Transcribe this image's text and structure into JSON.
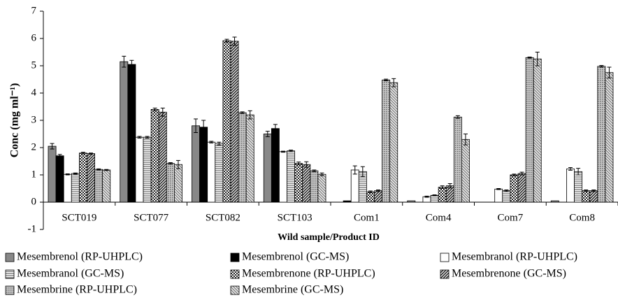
{
  "chart_data": {
    "type": "bar",
    "y_label": "Conc (mg ml⁻¹)",
    "x_label": "Wild sample/Product ID",
    "categories": [
      "SCT019",
      "SCT077",
      "SCT082",
      "SCT103",
      "Com1",
      "Com4",
      "Com7",
      "Com8"
    ],
    "ylim": [
      -1,
      7
    ],
    "yticks": [
      -1,
      0,
      1,
      2,
      3,
      4,
      5,
      6,
      7
    ],
    "grid": false,
    "series": [
      {
        "name": "Mesembrenol (RP-UHPLC)",
        "color": "#888888",
        "pattern": "solid",
        "values": [
          2.05,
          5.15,
          2.8,
          2.5,
          0,
          0.05,
          0,
          0.05
        ],
        "errors": [
          0.1,
          0.2,
          0.25,
          0.1,
          0,
          0,
          0,
          0
        ]
      },
      {
        "name": "Mesembrenol (GC-MS)",
        "color": "#000000",
        "pattern": "solid",
        "values": [
          1.7,
          5.05,
          2.75,
          2.7,
          0.05,
          0,
          0,
          0
        ],
        "errors": [
          0.05,
          0.15,
          0.25,
          0.15,
          0,
          0,
          0,
          0
        ]
      },
      {
        "name": "Mesembranol (RP-UHPLC)",
        "color": "#ffffff",
        "pattern": "solid",
        "values": [
          1.02,
          2.38,
          2.2,
          1.85,
          1.18,
          0.2,
          0.48,
          1.22
        ],
        "errors": [
          0.02,
          0.03,
          0.03,
          0.02,
          0.15,
          0.02,
          0.02,
          0.05
        ]
      },
      {
        "name": "Mesembranol (GC-MS)",
        "color": "#555555",
        "pattern": "hlines",
        "values": [
          1.05,
          2.38,
          2.15,
          1.88,
          1.12,
          0.25,
          0.42,
          1.12
        ],
        "errors": [
          0.02,
          0.03,
          0.05,
          0.03,
          0.18,
          0.02,
          0.03,
          0.12
        ]
      },
      {
        "name": "Mesembrenone (RP-UHPLC)",
        "color": "#333333",
        "pattern": "checker",
        "values": [
          1.8,
          3.4,
          5.92,
          1.42,
          0.38,
          0.55,
          1.0,
          0.42
        ],
        "errors": [
          0.03,
          0.05,
          0.05,
          0.05,
          0.03,
          0.05,
          0.03,
          0.03
        ]
      },
      {
        "name": "Mesembrenone (GC-MS)",
        "color": "#444444",
        "pattern": "diag",
        "values": [
          1.78,
          3.3,
          5.9,
          1.38,
          0.42,
          0.6,
          1.05,
          0.42
        ],
        "errors": [
          0.02,
          0.15,
          0.15,
          0.1,
          0.03,
          0.08,
          0.05,
          0.03
        ]
      },
      {
        "name": "Mesembrine (RP-UHPLC)",
        "color": "#9a9a9a",
        "pattern": "dots",
        "values": [
          1.2,
          1.42,
          3.28,
          1.15,
          4.48,
          3.12,
          5.3,
          4.98
        ],
        "errors": [
          0.02,
          0.03,
          0.03,
          0.03,
          0.03,
          0.05,
          0.02,
          0.03
        ]
      },
      {
        "name": "Mesembrine (GC-MS)",
        "color": "#777777",
        "pattern": "diag-light",
        "values": [
          1.18,
          1.38,
          3.2,
          1.02,
          4.38,
          2.3,
          5.25,
          4.75
        ],
        "errors": [
          0.02,
          0.15,
          0.15,
          0.05,
          0.15,
          0.2,
          0.25,
          0.2
        ]
      }
    ]
  }
}
